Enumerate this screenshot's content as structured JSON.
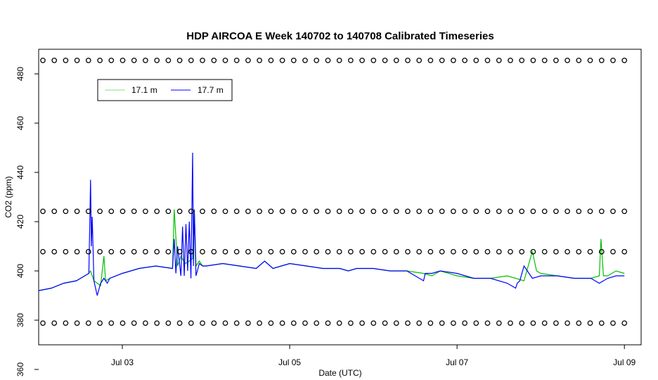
{
  "chart_data": {
    "type": "line",
    "title": "HDP AIRCOA E  Week 140702 to 140708  Calibrated Timeseries",
    "xlabel": "Date (UTC)",
    "ylabel": "CO2 (ppm)",
    "xlim": [
      0.0,
      7.2
    ],
    "ylim": [
      370,
      490
    ],
    "x_ticks": [
      {
        "x": 1.0,
        "label": "Jul 03"
      },
      {
        "x": 3.0,
        "label": "Jul 05"
      },
      {
        "x": 5.0,
        "label": "Jul 07"
      },
      {
        "x": 7.0,
        "label": "Jul 09"
      }
    ],
    "y_ticks": [
      360,
      380,
      400,
      420,
      440,
      460,
      480
    ],
    "legend": {
      "placement": "top-left",
      "entries": [
        {
          "label": "17.1 m",
          "color": "#00c000"
        },
        {
          "label": "17.7 m",
          "color": "#0000ff"
        }
      ]
    },
    "series": [
      {
        "name": "17.1 m",
        "color": "#00c000",
        "x": [
          0.0,
          0.15,
          0.3,
          0.45,
          0.55,
          0.6,
          0.62,
          0.64,
          0.66,
          0.7,
          0.74,
          0.78,
          0.8,
          0.85,
          1.0,
          1.2,
          1.4,
          1.6,
          1.62,
          1.66,
          1.7,
          1.75,
          1.8,
          1.84,
          1.86,
          1.88,
          1.92,
          1.96,
          2.0,
          2.2,
          2.4,
          2.6,
          2.7,
          2.8,
          3.0,
          3.2,
          3.4,
          3.6,
          3.7,
          3.8,
          4.0,
          4.2,
          4.4,
          4.6,
          4.7,
          4.75,
          4.8,
          5.0,
          5.2,
          5.4,
          5.6,
          5.8,
          5.9,
          5.95,
          6.0,
          6.2,
          6.4,
          6.6,
          6.7,
          6.72,
          6.75,
          6.8,
          6.9,
          7.0
        ],
        "y": [
          392,
          393,
          395,
          396,
          398,
          399,
          400,
          398,
          396,
          395,
          394,
          406,
          396,
          397,
          399,
          401,
          402,
          401,
          425,
          402,
          406,
          403,
          404,
          405,
          425,
          402,
          404,
          402,
          402,
          403,
          402,
          401,
          404,
          401,
          403,
          402,
          401,
          401,
          400,
          401,
          401,
          400,
          400,
          399,
          398,
          399,
          400,
          398,
          397,
          397,
          398,
          396,
          408,
          400,
          399,
          398,
          397,
          397,
          398,
          413,
          398,
          398,
          400,
          399
        ]
      },
      {
        "name": "17.7 m",
        "color": "#0000ff",
        "x": [
          0.0,
          0.15,
          0.3,
          0.45,
          0.55,
          0.6,
          0.62,
          0.63,
          0.64,
          0.66,
          0.7,
          0.74,
          0.78,
          0.82,
          0.85,
          1.0,
          1.2,
          1.4,
          1.6,
          1.62,
          1.64,
          1.66,
          1.7,
          1.72,
          1.74,
          1.76,
          1.78,
          1.8,
          1.82,
          1.84,
          1.85,
          1.86,
          1.88,
          1.92,
          1.96,
          2.0,
          2.2,
          2.4,
          2.6,
          2.7,
          2.8,
          3.0,
          3.2,
          3.4,
          3.6,
          3.7,
          3.8,
          4.0,
          4.2,
          4.4,
          4.6,
          4.62,
          4.7,
          4.8,
          5.0,
          5.2,
          5.4,
          5.6,
          5.7,
          5.72,
          5.75,
          5.8,
          5.9,
          6.0,
          6.2,
          6.4,
          6.6,
          6.65,
          6.7,
          6.75,
          6.8,
          6.9,
          7.0
        ],
        "y": [
          392,
          393,
          395,
          396,
          398,
          399,
          437,
          410,
          422,
          396,
          390,
          395,
          397,
          395,
          397,
          399,
          401,
          402,
          401,
          413,
          399,
          410,
          398,
          418,
          398,
          419,
          400,
          420,
          397,
          448,
          402,
          425,
          398,
          403,
          402,
          402,
          403,
          402,
          401,
          404,
          401,
          403,
          402,
          401,
          401,
          400,
          401,
          401,
          400,
          400,
          396,
          399,
          399,
          400,
          399,
          397,
          397,
          395,
          393,
          395,
          396,
          402,
          397,
          398,
          398,
          397,
          397,
          396,
          395,
          396,
          397,
          398,
          398
        ]
      }
    ],
    "reference_markers": [
      {
        "y": 485.5,
        "count": 52,
        "symbol": "o"
      },
      {
        "y": 424.2,
        "count": 52,
        "symbol": "o"
      },
      {
        "y": 407.8,
        "count": 52,
        "symbol": "o"
      },
      {
        "y": 378.8,
        "count": 52,
        "symbol": "o"
      }
    ]
  }
}
